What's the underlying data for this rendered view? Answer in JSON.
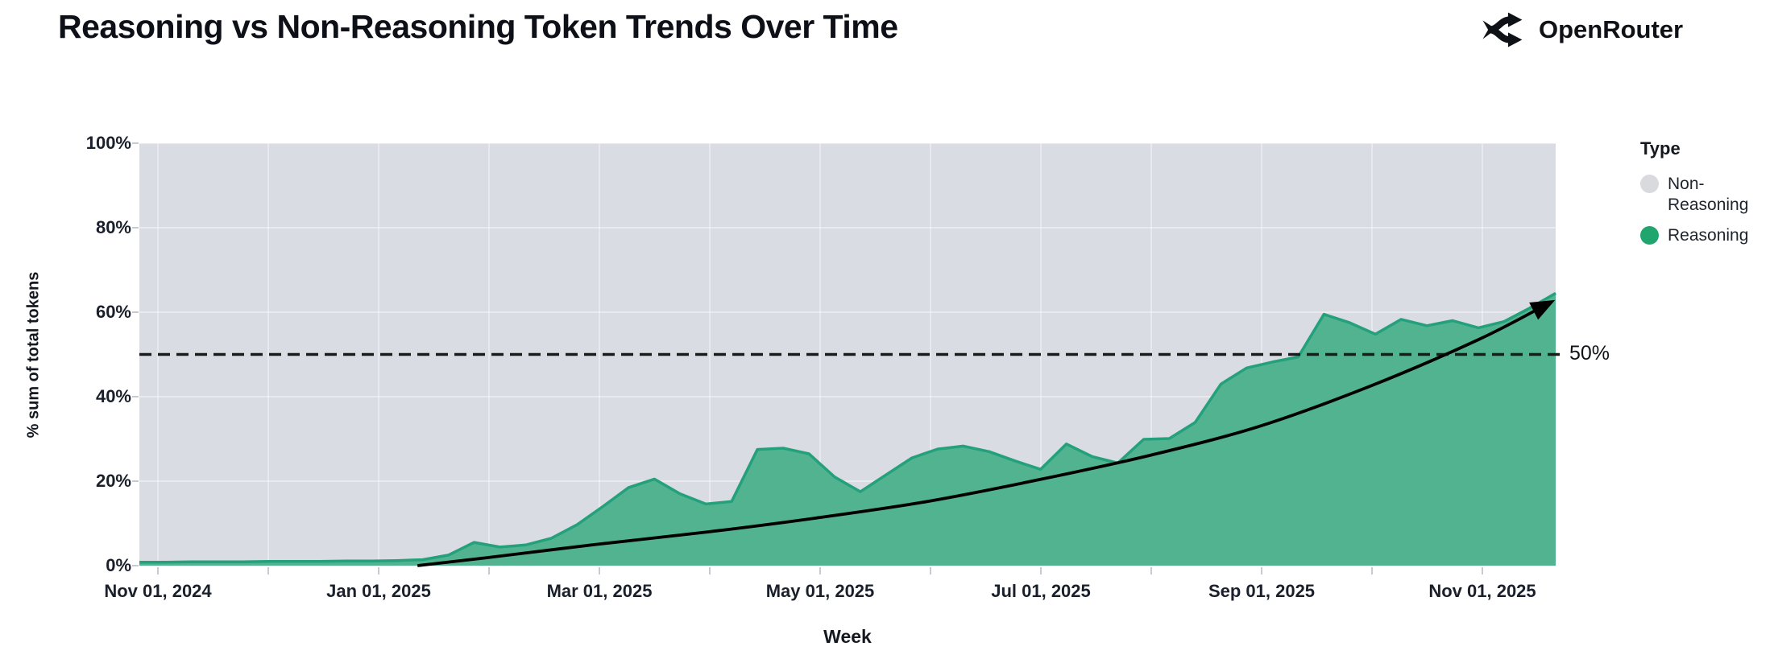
{
  "header": {
    "title": "Reasoning vs Non-Reasoning Token Trends Over Time",
    "brand": "OpenRouter"
  },
  "chart_data": {
    "type": "area",
    "stacked": true,
    "normalized_total_pct": 100,
    "title": "Reasoning vs Non-Reasoning Token Trends Over Time",
    "xlabel": "Week",
    "ylabel": "% sum of total tokens",
    "ylim": [
      0,
      100
    ],
    "grid": true,
    "legend_position": "right",
    "y_ticks": [
      {
        "value": 0,
        "label": "0%"
      },
      {
        "value": 20,
        "label": "20%"
      },
      {
        "value": 40,
        "label": "40%"
      },
      {
        "value": 60,
        "label": "60%"
      },
      {
        "value": 80,
        "label": "80%"
      },
      {
        "value": 100,
        "label": "100%"
      }
    ],
    "x_ticks_labeled": [
      {
        "month_index": 0,
        "label": "Nov 01, 2024"
      },
      {
        "month_index": 2,
        "label": "Jan 01, 2025"
      },
      {
        "month_index": 4,
        "label": "Mar 01, 2025"
      },
      {
        "month_index": 6,
        "label": "May 01, 2025"
      },
      {
        "month_index": 8,
        "label": "Jul 01, 2025"
      },
      {
        "month_index": 10,
        "label": "Sep 01, 2025"
      },
      {
        "month_index": 12,
        "label": "Nov 01, 2025"
      }
    ],
    "x_minor_tick_month_count": 13,
    "weeks": [
      "2024-10-27",
      "2024-11-03",
      "2024-11-10",
      "2024-11-17",
      "2024-11-24",
      "2024-12-01",
      "2024-12-08",
      "2024-12-15",
      "2024-12-22",
      "2024-12-29",
      "2025-01-05",
      "2025-01-12",
      "2025-01-19",
      "2025-01-26",
      "2025-02-02",
      "2025-02-09",
      "2025-02-16",
      "2025-02-23",
      "2025-03-02",
      "2025-03-09",
      "2025-03-16",
      "2025-03-23",
      "2025-03-30",
      "2025-04-06",
      "2025-04-13",
      "2025-04-20",
      "2025-04-27",
      "2025-05-04",
      "2025-05-11",
      "2025-05-18",
      "2025-05-25",
      "2025-06-01",
      "2025-06-08",
      "2025-06-15",
      "2025-06-22",
      "2025-06-29",
      "2025-07-06",
      "2025-07-13",
      "2025-07-20",
      "2025-07-27",
      "2025-08-03",
      "2025-08-10",
      "2025-08-17",
      "2025-08-24",
      "2025-08-31",
      "2025-09-07",
      "2025-09-14",
      "2025-09-21",
      "2025-09-28",
      "2025-10-05",
      "2025-10-12",
      "2025-10-19",
      "2025-10-26",
      "2025-11-02",
      "2025-11-09",
      "2025-11-16"
    ],
    "series": [
      {
        "name": "Reasoning",
        "values": [
          0.8,
          0.8,
          0.9,
          0.9,
          0.9,
          1.0,
          1.0,
          1.0,
          1.1,
          1.1,
          1.2,
          1.4,
          2.5,
          5.5,
          4.4,
          4.9,
          6.5,
          9.7,
          14.0,
          18.5,
          20.5,
          17.0,
          14.6,
          15.2,
          27.5,
          27.8,
          26.5,
          21.0,
          17.5,
          21.5,
          25.5,
          27.6,
          28.3,
          27.0,
          24.8,
          22.8,
          28.8,
          25.8,
          24.3,
          29.9,
          30.1,
          33.9,
          43.0,
          46.8,
          48.2,
          49.4,
          59.5,
          57.5,
          54.8,
          58.3,
          56.8,
          58.0,
          56.3,
          57.8,
          61.0,
          64.5
        ]
      },
      {
        "name": "Non-Reasoning",
        "values": [
          99.2,
          99.2,
          99.1,
          99.1,
          99.1,
          99.0,
          99.0,
          99.0,
          98.9,
          98.9,
          98.8,
          98.6,
          97.5,
          94.5,
          95.6,
          95.1,
          93.5,
          90.3,
          86.0,
          81.5,
          79.5,
          83.0,
          85.4,
          84.8,
          72.5,
          72.2,
          73.5,
          79.0,
          82.5,
          78.5,
          74.5,
          72.4,
          71.7,
          73.0,
          75.2,
          77.2,
          71.2,
          74.2,
          75.7,
          70.1,
          69.9,
          66.1,
          57.0,
          53.2,
          51.8,
          50.6,
          40.5,
          42.5,
          45.2,
          41.7,
          43.2,
          42.0,
          43.7,
          42.2,
          39.0,
          35.5
        ]
      }
    ],
    "annotation_50": {
      "label": "50%",
      "value": 50,
      "style": "dashed"
    },
    "trend_arrow": {
      "description": "smooth rising trend arrow over the Reasoning area",
      "points_week_pct": [
        [
          10.8,
          0
        ],
        [
          13.4,
          1.8
        ],
        [
          17.7,
          5.0
        ],
        [
          22.1,
          8.0
        ],
        [
          26.3,
          11.3
        ],
        [
          30.6,
          15.2
        ],
        [
          34.9,
          20.3
        ],
        [
          39.3,
          26.2
        ],
        [
          43.5,
          33.0
        ],
        [
          47.8,
          42.5
        ],
        [
          52.0,
          53.5
        ],
        [
          54.7,
          62.0
        ]
      ]
    }
  },
  "axis": {
    "y_title": "% sum of total tokens",
    "x_title": "Week"
  },
  "legend": {
    "title": "Type",
    "items": [
      {
        "label": "Non-Reasoning",
        "color_key": "non_reasoning_dot"
      },
      {
        "label": "Reasoning",
        "color_key": "reasoning_dot"
      }
    ]
  },
  "colors": {
    "reasoning_fill": "#52b391",
    "reasoning_edge": "#24a17a",
    "non_reasoning_fill": "#d9dce3",
    "reasoning_dot": "#21a56f",
    "non_reasoning_dot": "#d8dade",
    "trend_line": "#000000",
    "dashed_line": "#1b1b1b",
    "gridline": "#ffffff8c",
    "tick": "#c6cad2",
    "text_dark": "#14181f"
  }
}
